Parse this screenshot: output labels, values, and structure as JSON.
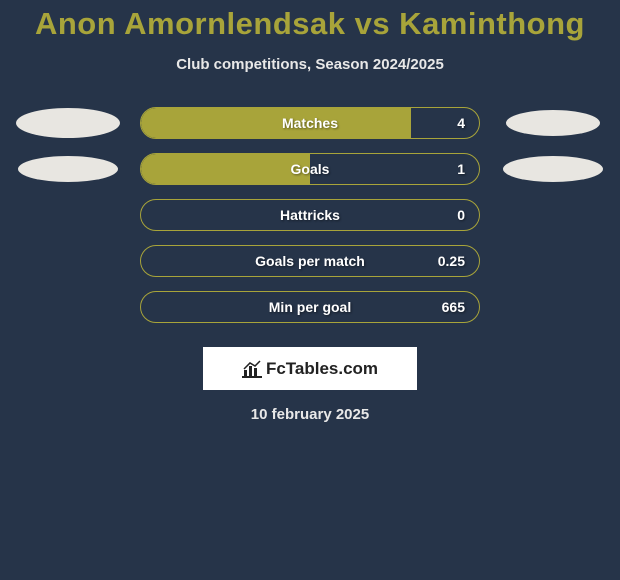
{
  "title": "Anon Amornlendsak vs Kaminthong",
  "subtitle": "Club competitions, Season 2024/2025",
  "date": "10 february 2025",
  "logo": {
    "text": "FcTables.com"
  },
  "colors": {
    "background": "#263449",
    "accent": "#a8a43a",
    "bar_border": "#a8a43a",
    "bar_fill": "#a8a43a",
    "title": "#a8a43a",
    "text": "#e8e8e8",
    "bar_text": "#ffffff",
    "ellipse_left": "#e8e6e1",
    "ellipse_right": "#e8e6e1"
  },
  "stats": [
    {
      "label": "Matches",
      "value": "4",
      "fill_pct": 80,
      "left_ellipse": {
        "shown": true,
        "w": 104,
        "h": 30,
        "fill": "#e8e6e1"
      },
      "right_ellipse": {
        "shown": true,
        "w": 94,
        "h": 26,
        "fill": "#e8e6e1"
      }
    },
    {
      "label": "Goals",
      "value": "1",
      "fill_pct": 50,
      "left_ellipse": {
        "shown": true,
        "w": 100,
        "h": 26,
        "fill": "#e8e6e1"
      },
      "right_ellipse": {
        "shown": true,
        "w": 100,
        "h": 26,
        "fill": "#e8e6e1"
      }
    },
    {
      "label": "Hattricks",
      "value": "0",
      "fill_pct": 0,
      "left_ellipse": {
        "shown": false
      },
      "right_ellipse": {
        "shown": false
      }
    },
    {
      "label": "Goals per match",
      "value": "0.25",
      "fill_pct": 0,
      "left_ellipse": {
        "shown": false
      },
      "right_ellipse": {
        "shown": false
      }
    },
    {
      "label": "Min per goal",
      "value": "665",
      "fill_pct": 0,
      "left_ellipse": {
        "shown": false
      },
      "right_ellipse": {
        "shown": false
      }
    }
  ]
}
